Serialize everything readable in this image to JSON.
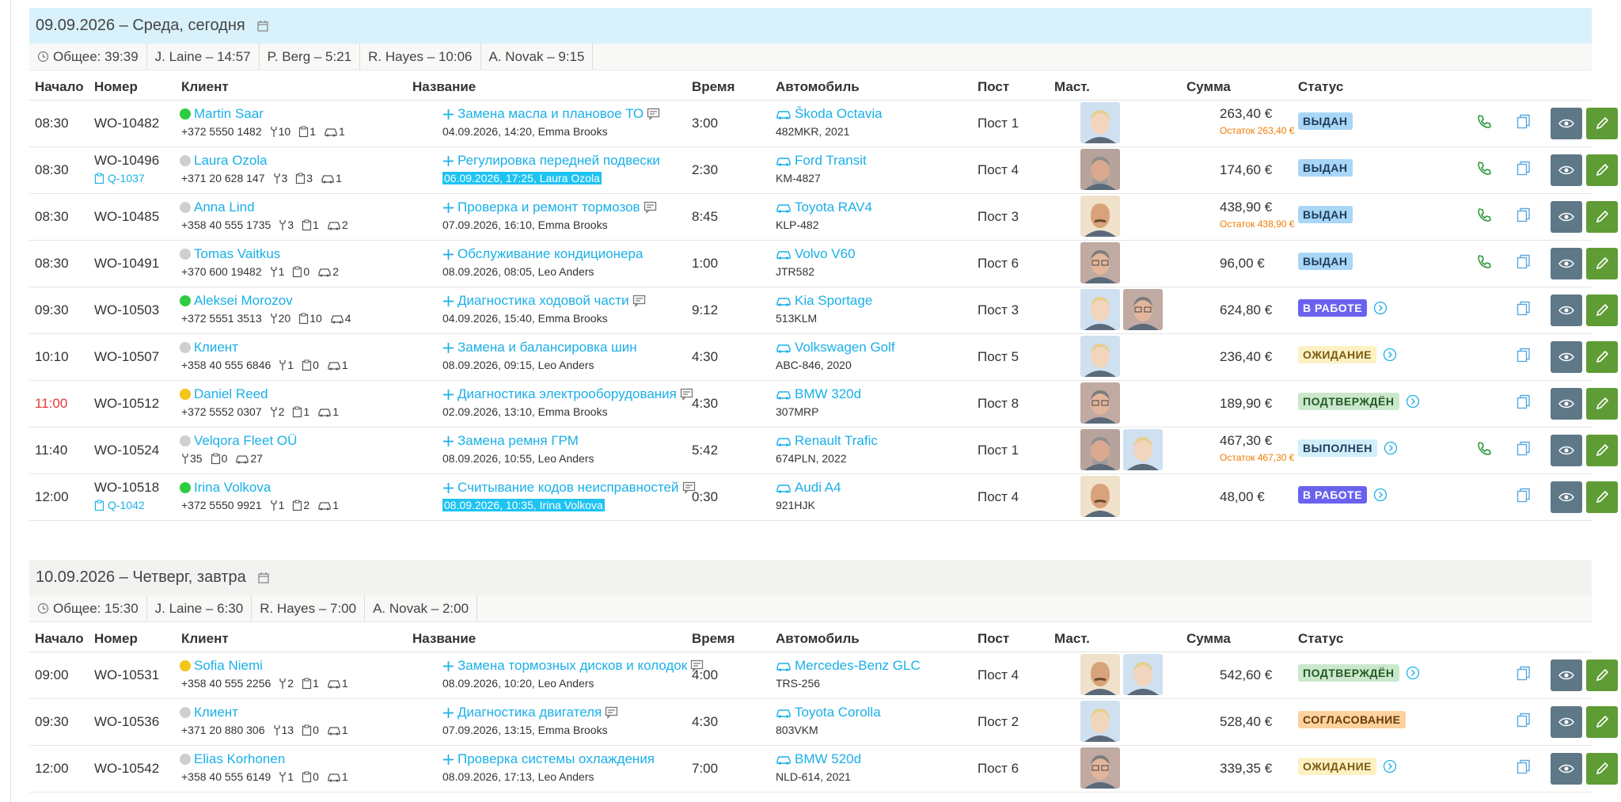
{
  "days": [
    {
      "title": "09.09.2026 – Среда, сегодня",
      "today": true,
      "summary": [
        "Общее: 39:39",
        "J. Laine – 14:57",
        "P. Berg – 5:21",
        "R. Hayes – 10:06",
        "A. Novak – 9:15"
      ],
      "columns": [
        "Начало",
        "Номер",
        "Клиент",
        "Название",
        "Время",
        "Автомобиль",
        "Пост",
        "Маст.",
        "Сумма",
        "Статус"
      ],
      "rows": [
        {
          "start": "08:30",
          "number": "WO-10482",
          "dot": "#2ecc40",
          "client": "Martin Saar",
          "phone": "+372 5550 1482",
          "counts": [
            10,
            1,
            1
          ],
          "title": "Замена масла и плановое ТО",
          "comment": true,
          "note": "04.09.2026, 14:20, Emma Brooks",
          "time": "3:00",
          "car": "Škoda Octavia",
          "plate": "482MKR, 2021",
          "post": "Пост 1",
          "masters": [
            "blond"
          ],
          "sum": "263,40 €",
          "rest": "Остаток 263,40 €",
          "status": "ВЫДАН",
          "status_bg": "#a9d6f7",
          "status_fg": "#1d3c5a",
          "call": true
        },
        {
          "start": "08:30",
          "number": "WO-10496",
          "quote": "Q-1037",
          "dot": "#cfcfcf",
          "client": "Laura Ozola",
          "phone": "+371 20 628 147",
          "counts": [
            3,
            3,
            1
          ],
          "title": "Регулировка передней подвески",
          "note": "06.09.2026, 17:25, Laura Ozola",
          "note_highlight": true,
          "time": "2:30",
          "car": "Ford Transit",
          "plate": "KM-4827",
          "post": "Пост 4",
          "masters": [
            "gray"
          ],
          "sum": "174,60 €",
          "status": "ВЫДАН",
          "status_bg": "#a9d6f7",
          "status_fg": "#1d3c5a",
          "call": true
        },
        {
          "start": "08:30",
          "number": "WO-10485",
          "dot": "#cfcfcf",
          "client": "Anna Lind",
          "phone": "+358 40 555 1735",
          "counts": [
            3,
            1,
            2
          ],
          "title": "Проверка и ремонт тормозов",
          "comment": true,
          "note": "07.09.2026, 16:10, Emma Brooks",
          "time": "8:45",
          "car": "Toyota RAV4",
          "plate": "KLP-482",
          "post": "Пост 3",
          "masters": [
            "bald"
          ],
          "sum": "438,90 €",
          "rest": "Остаток 438,90 €",
          "status": "ВЫДАН",
          "status_bg": "#a9d6f7",
          "status_fg": "#1d3c5a",
          "call": true
        },
        {
          "start": "08:30",
          "number": "WO-10491",
          "dot": "#cfcfcf",
          "client": "Tomas Vaitkus",
          "phone": "+370 600 19482",
          "counts": [
            1,
            0,
            2
          ],
          "title": "Обслуживание кондиционера",
          "note": "08.09.2026, 08:05, Leo Anders",
          "time": "1:00",
          "car": "Volvo V60",
          "plate": "JTR582",
          "post": "Пост 6",
          "masters": [
            "glasses"
          ],
          "sum": "96,00 €",
          "status": "ВЫДАН",
          "status_bg": "#a9d6f7",
          "status_fg": "#1d3c5a",
          "call": true
        },
        {
          "start": "09:30",
          "number": "WO-10503",
          "dot": "#2ecc40",
          "client": "Aleksei Morozov",
          "phone": "+372 5551 3513",
          "counts": [
            20,
            10,
            4
          ],
          "title": "Диагностика ходовой части",
          "comment": true,
          "note": "04.09.2026, 15:40, Emma Brooks",
          "time": "9:12",
          "car": "Kia Sportage",
          "plate": "513KLM",
          "post": "Пост 3",
          "masters": [
            "blond",
            "glasses"
          ],
          "sum": "624,80 €",
          "status": "В РАБОТЕ",
          "status_bg": "#6a62ef",
          "status_fg": "#ffffff",
          "arrow": true
        },
        {
          "start": "10:10",
          "number": "WO-10507",
          "dot": "#cfcfcf",
          "client": "Клиент",
          "phone": "+358 40 555 6846",
          "counts": [
            1,
            0,
            1
          ],
          "title": "Замена и балансировка шин",
          "note": "08.09.2026, 09:15, Leo Anders",
          "time": "4:30",
          "car": "Volkswagen Golf",
          "plate": "ABC-846, 2020",
          "post": "Пост 5",
          "masters": [
            "blond"
          ],
          "sum": "236,40 €",
          "status": "ОЖИДАНИЕ",
          "status_bg": "#fdf1c4",
          "status_fg": "#7a5a10",
          "arrow": true
        },
        {
          "start": "11:00",
          "late": true,
          "number": "WO-10512",
          "dot": "#f5c518",
          "client": "Daniel Reed",
          "phone": "+372 5552 0307",
          "counts": [
            2,
            1,
            1
          ],
          "title": "Диагностика электрооборудования",
          "comment": true,
          "note": "02.09.2026, 13:10, Emma Brooks",
          "time": "4:30",
          "car": "BMW 320d",
          "plate": "307MRP",
          "post": "Пост 8",
          "masters": [
            "glasses"
          ],
          "sum": "189,90 €",
          "status": "ПОДТВЕРЖДЁН",
          "status_bg": "#cbe8cc",
          "status_fg": "#235a26",
          "arrow": true
        },
        {
          "start": "11:40",
          "number": "WO-10524",
          "dot": "#cfcfcf",
          "client": "Velqora Fleet OÜ",
          "counts": [
            35,
            0,
            27
          ],
          "title": "Замена ремня ГРМ",
          "note": "08.09.2026, 10:55, Leo Anders",
          "time": "5:42",
          "car": "Renault Trafic",
          "plate": "674PLN, 2022",
          "post": "Пост 1",
          "masters": [
            "gray",
            "blond"
          ],
          "sum": "467,30 €",
          "rest": "Остаток 467,30 €",
          "status": "ВЫПОЛНЕН",
          "status_bg": "#d2eefb",
          "status_fg": "#1d3c5a",
          "arrow": true,
          "call": true
        },
        {
          "start": "12:00",
          "number": "WO-10518",
          "quote": "Q-1042",
          "dot": "#2ecc40",
          "client": "Irina Volkova",
          "phone": "+372 5550 9921",
          "counts": [
            1,
            2,
            1
          ],
          "title": "Считывание кодов неисправностей",
          "comment": true,
          "note": "08.09.2026, 10:35, Irina Volkova",
          "note_highlight": true,
          "time": "0:30",
          "car": "Audi A4",
          "plate": "921HJK",
          "post": "Пост 4",
          "masters": [
            "bald"
          ],
          "sum": "48,00 €",
          "status": "В РАБОТЕ",
          "status_bg": "#6a62ef",
          "status_fg": "#ffffff",
          "arrow": true
        }
      ]
    },
    {
      "title": "10.09.2026 – Четверг, завтра",
      "today": false,
      "summary": [
        "Общее: 15:30",
        "J. Laine – 6:30",
        "R. Hayes – 7:00",
        "A. Novak – 2:00"
      ],
      "columns": [
        "Начало",
        "Номер",
        "Клиент",
        "Название",
        "Время",
        "Автомобиль",
        "Пост",
        "Маст.",
        "Сумма",
        "Статус"
      ],
      "rows": [
        {
          "start": "09:00",
          "number": "WO-10531",
          "dot": "#f5c518",
          "client": "Sofia Niemi",
          "phone": "+358 40 555 2256",
          "counts": [
            2,
            1,
            1
          ],
          "title": "Замена тормозных дисков и колодок",
          "comment": true,
          "note": "08.09.2026, 10:20, Leo Anders",
          "time": "4:00",
          "car": "Mercedes-Benz GLC",
          "plate": "TRS-256",
          "post": "Пост 4",
          "masters": [
            "bald",
            "blond"
          ],
          "sum": "542,60 €",
          "status": "ПОДТВЕРЖДЁН",
          "status_bg": "#cbe8cc",
          "status_fg": "#235a26",
          "arrow": true
        },
        {
          "start": "09:30",
          "number": "WO-10536",
          "dot": "#cfcfcf",
          "client": "Клиент",
          "phone": "+371 20 880 306",
          "counts": [
            13,
            0,
            1
          ],
          "title": "Диагностика двигателя",
          "comment": true,
          "note": "07.09.2026, 13:15, Emma Brooks",
          "time": "4:30",
          "car": "Toyota Corolla",
          "plate": "803VKM",
          "post": "Пост 2",
          "masters": [
            "blond"
          ],
          "sum": "528,40 €",
          "status": "СОГЛАСОВАНИЕ",
          "status_bg": "#fcd29e",
          "status_fg": "#6a3a08"
        },
        {
          "start": "12:00",
          "number": "WO-10542",
          "dot": "#cfcfcf",
          "client": "Elias Korhonen",
          "phone": "+358 40 555 6149",
          "counts": [
            1,
            0,
            1
          ],
          "title": "Проверка системы охлаждения",
          "note": "08.09.2026, 17:13, Leo Anders",
          "time": "7:00",
          "car": "BMW 520d",
          "plate": "NLD-614, 2021",
          "post": "Пост 6",
          "masters": [
            "glasses"
          ],
          "sum": "339,35 €",
          "status": "ОЖИДАНИЕ",
          "status_bg": "#fdf1c4",
          "status_fg": "#7a5a10",
          "arrow": true
        }
      ]
    }
  ]
}
